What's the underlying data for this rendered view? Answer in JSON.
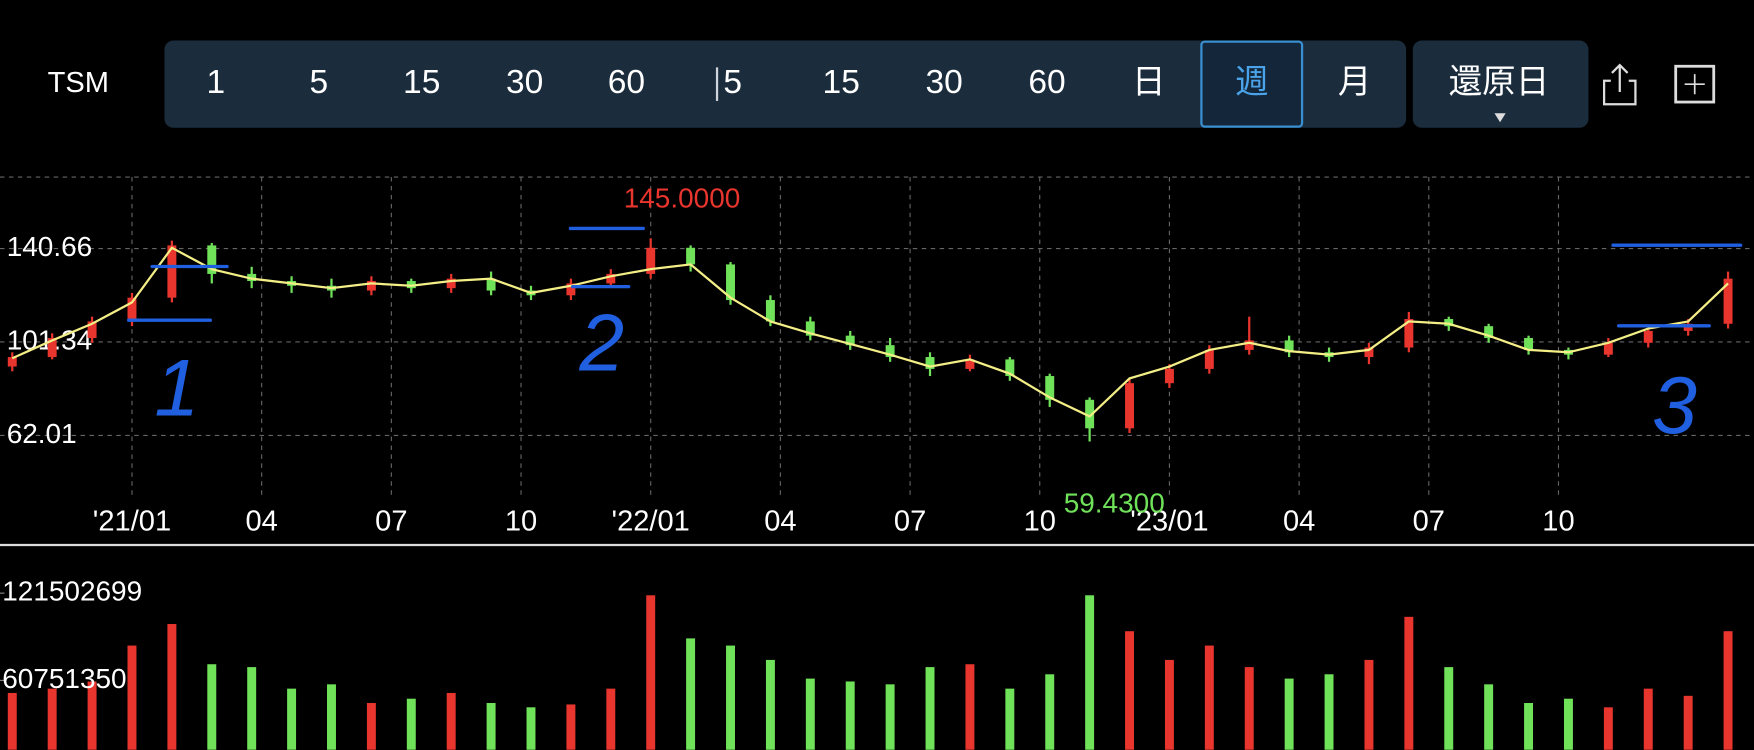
{
  "toolbar": {
    "symbol": "TSM",
    "intervals": [
      "1",
      "5",
      "15",
      "30",
      "60",
      "5",
      "15",
      "30",
      "60",
      "日",
      "週",
      "月"
    ],
    "selected": 10,
    "adjust_button": "還原日"
  },
  "chart_data": [
    {
      "type": "candlestick",
      "x": [
        -12,
        -8,
        -4,
        0,
        4,
        8,
        12,
        16,
        20,
        24,
        28,
        32,
        36,
        40,
        44,
        48,
        52,
        56,
        60,
        64,
        68,
        72,
        76,
        80,
        84,
        88,
        92,
        96,
        100,
        104,
        108,
        112,
        116,
        120,
        124,
        128,
        132,
        136,
        140,
        144,
        148,
        152,
        156,
        160
      ],
      "open": [
        91,
        95,
        103,
        110,
        120,
        142,
        130,
        127,
        125,
        123,
        127,
        124,
        128,
        123,
        121,
        126,
        130,
        141,
        134,
        119,
        110,
        104,
        100,
        95,
        90,
        94,
        87,
        77,
        65,
        84,
        90,
        98,
        102,
        97,
        95,
        99,
        111,
        108,
        103,
        98,
        96,
        101,
        106,
        109
      ],
      "high": [
        97,
        105,
        112,
        122,
        144,
        143,
        133,
        129,
        128,
        129,
        128,
        130,
        131,
        125,
        128,
        132,
        145,
        142,
        135,
        121,
        112,
        106,
        103,
        97,
        96,
        95,
        88,
        78,
        86,
        92,
        100,
        112,
        104,
        99,
        101,
        114,
        112,
        109,
        104,
        99,
        103,
        107,
        111,
        131
      ],
      "low": [
        89,
        94,
        101,
        108,
        118,
        126,
        124,
        122,
        120,
        121,
        122,
        122,
        121,
        119,
        119,
        124,
        128,
        131,
        117,
        108,
        102,
        98,
        93,
        87,
        89,
        85,
        74,
        59.43,
        63,
        82,
        88,
        96,
        95,
        93,
        92,
        97,
        106,
        101,
        96,
        94,
        95,
        99,
        104,
        107
      ],
      "close": [
        95,
        103,
        110,
        120,
        142,
        130,
        127,
        125,
        123,
        127,
        124,
        128,
        123,
        121,
        126,
        130,
        141,
        134,
        119,
        110,
        104,
        100,
        95,
        90,
        94,
        87,
        77,
        65,
        84,
        90,
        98,
        102,
        97,
        95,
        99,
        111,
        108,
        103,
        98,
        96,
        101,
        106,
        109,
        128
      ],
      "ma": [
        94.5,
        102,
        109,
        118,
        141,
        132,
        128,
        126,
        124,
        126,
        125,
        127,
        128,
        122,
        125,
        129,
        132,
        134,
        120,
        110,
        105,
        100.5,
        96,
        91,
        94,
        88,
        78,
        70,
        86,
        91,
        98,
        101,
        97.5,
        96,
        98,
        110,
        109,
        104,
        98,
        97,
        101,
        107,
        110,
        126
      ],
      "up_color": "#e8352e",
      "down_color": "#6fe25a",
      "ma_color": "#f3ee86",
      "xlim": [
        -13.23,
        162.6
      ],
      "xticks": [
        {
          "value": 0,
          "label": "'21/01"
        },
        {
          "value": 13,
          "label": "04"
        },
        {
          "value": 26,
          "label": "07"
        },
        {
          "value": 39,
          "label": "10"
        },
        {
          "value": 52,
          "label": "'22/01"
        },
        {
          "value": 65,
          "label": "04"
        },
        {
          "value": 78,
          "label": "07"
        },
        {
          "value": 91,
          "label": "10"
        },
        {
          "value": 104,
          "label": "'23/01"
        },
        {
          "value": 117,
          "label": "04"
        },
        {
          "value": 130,
          "label": "07"
        },
        {
          "value": 143,
          "label": "10"
        }
      ],
      "ylim": [
        33.28,
        170.8
      ],
      "yticks": [
        140.66,
        101.34,
        62.01
      ],
      "grid": true,
      "max_label": "145.0000",
      "min_label": "59.4300",
      "annotations": [
        "1",
        "2",
        "3"
      ]
    },
    {
      "type": "bar",
      "x": [
        -12,
        -8,
        -4,
        0,
        4,
        8,
        12,
        16,
        20,
        24,
        28,
        32,
        36,
        40,
        44,
        48,
        52,
        56,
        60,
        64,
        68,
        72,
        76,
        80,
        84,
        88,
        92,
        96,
        100,
        104,
        108,
        112,
        116,
        120,
        124,
        128,
        132,
        136,
        140,
        144,
        148,
        152,
        156,
        160
      ],
      "values": [
        52000000,
        55000000,
        60000000,
        85000000,
        100000000,
        72000000,
        70000000,
        55000000,
        58000000,
        45000000,
        48000000,
        52000000,
        45000000,
        42000000,
        44000000,
        55000000,
        120000000,
        90000000,
        85000000,
        75000000,
        62000000,
        60000000,
        58000000,
        70000000,
        72000000,
        55000000,
        65000000,
        120000000,
        95000000,
        75000000,
        85000000,
        70000000,
        62000000,
        65000000,
        75000000,
        105000000,
        70000000,
        58000000,
        45000000,
        48000000,
        42000000,
        55000000,
        50000000,
        95000000
      ],
      "xlim": [
        -13.23,
        162.6
      ],
      "ylim": [
        12460000,
        155000000
      ],
      "yticks": [
        121502699,
        60751350
      ]
    }
  ]
}
